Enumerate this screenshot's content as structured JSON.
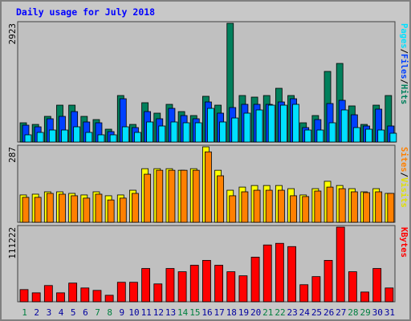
{
  "title": "Daily usage for July 2018",
  "categories": [
    "1",
    "2",
    "3",
    "4",
    "5",
    "6",
    "7",
    "8",
    "9",
    "10",
    "11",
    "12",
    "13",
    "14",
    "15",
    "16",
    "17",
    "18",
    "19",
    "20",
    "21",
    "22",
    "23",
    "24",
    "25",
    "26",
    "27",
    "28",
    "29",
    "30",
    "31"
  ],
  "category_colors": [
    "#008040",
    "#0000a0",
    "#0000a0",
    "#0000a0",
    "#0000a0",
    "#0000a0",
    "#008040",
    "#008040",
    "#0000a0",
    "#0000a0",
    "#0000a0",
    "#0000a0",
    "#0000a0",
    "#008040",
    "#008040",
    "#0000a0",
    "#0000a0",
    "#0000a0",
    "#0000a0",
    "#0000a0",
    "#008040",
    "#008040",
    "#0000a0",
    "#0000a0",
    "#0000a0",
    "#0000a0",
    "#0000a0",
    "#008040",
    "#008040",
    "#0000a0",
    "#0000a0"
  ],
  "separator": "/",
  "chart_data": [
    {
      "type": "bar",
      "ylim": [
        0,
        2923
      ],
      "yticks": [
        2923
      ],
      "series": [
        {
          "name": "Hits",
          "color": "#00805c",
          "values": [
            474,
            434,
            632,
            908,
            908,
            632,
            553,
            316,
            1145,
            434,
            968,
            711,
            928,
            750,
            652,
            1126,
            908,
            2923,
            1145,
            1106,
            1145,
            1323,
            1145,
            474,
            652,
            1738,
            1935,
            889,
            434,
            908,
            1145
          ]
        },
        {
          "name": "Files",
          "color": "#0040ff",
          "values": [
            415,
            375,
            573,
            632,
            750,
            494,
            474,
            257,
            1066,
            356,
            750,
            573,
            829,
            652,
            573,
            987,
            711,
            849,
            928,
            928,
            928,
            987,
            1066,
            356,
            553,
            948,
            1027,
            671,
            395,
            810,
            395
          ]
        },
        {
          "name": "Pages",
          "color": "#00e0ff",
          "values": [
            178,
            237,
            296,
            296,
            375,
            237,
            178,
            178,
            375,
            237,
            494,
            395,
            494,
            474,
            474,
            829,
            494,
            592,
            711,
            790,
            908,
            908,
            928,
            296,
            296,
            474,
            790,
            356,
            316,
            296,
            217
          ]
        }
      ]
    },
    {
      "type": "bar",
      "ylim": [
        0,
        287
      ],
      "yticks": [
        287
      ],
      "series": [
        {
          "name": "Visits",
          "color": "#ffff00",
          "values": [
            104,
            107,
            116,
            116,
            110,
            104,
            116,
            101,
            104,
            122,
            204,
            204,
            204,
            198,
            204,
            287,
            198,
            122,
            134,
            140,
            140,
            140,
            128,
            104,
            128,
            156,
            140,
            128,
            116,
            128,
            110
          ]
        },
        {
          "name": "Sites",
          "color": "#ff8000",
          "values": [
            95,
            95,
            110,
            107,
            101,
            92,
            107,
            85,
            92,
            110,
            183,
            198,
            198,
            198,
            198,
            268,
            177,
            101,
            116,
            122,
            122,
            122,
            101,
            98,
            119,
            134,
            128,
            116,
            113,
            116,
            110
          ]
        }
      ]
    },
    {
      "type": "bar",
      "ylim": [
        0,
        111222
      ],
      "yticks": [
        111222
      ],
      "series": [
        {
          "name": "KBytes",
          "color": "#ff0000",
          "values": [
            18135,
            13300,
            24180,
            13300,
            27807,
            20553,
            16926,
            9672,
            29016,
            29016,
            49569,
            26598,
            49569,
            44733,
            54405,
            61659,
            54405,
            44733,
            38688,
            66495,
            84630,
            87048,
            82212,
            25389,
            37479,
            61659,
            111222,
            44733,
            14508,
            49569,
            20553
          ]
        }
      ]
    }
  ]
}
